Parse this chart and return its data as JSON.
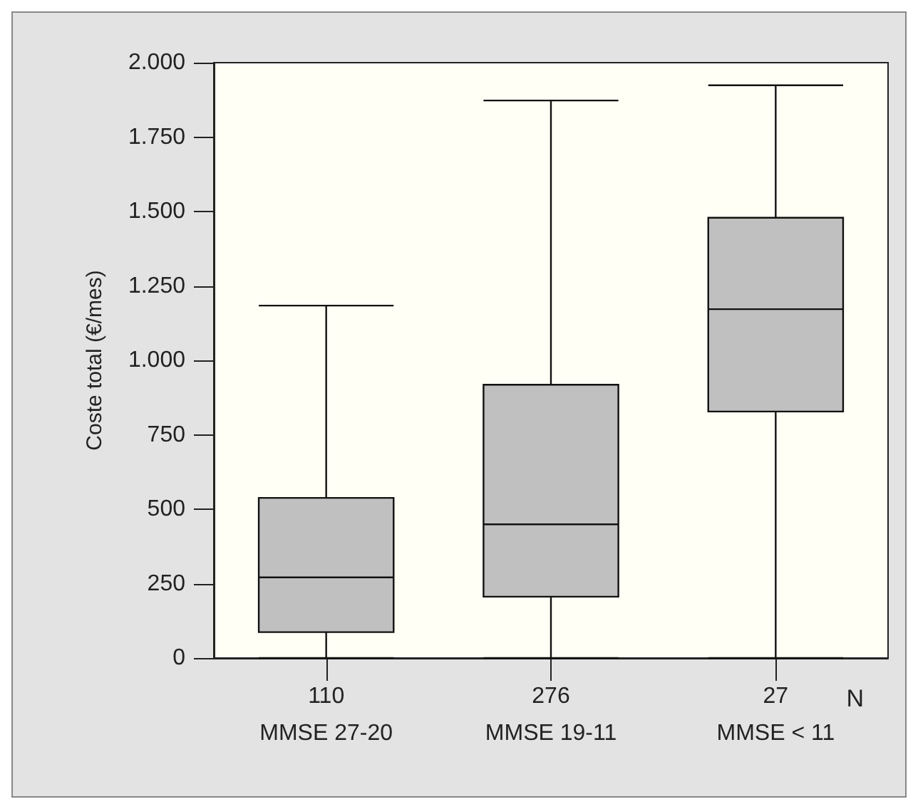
{
  "chart_data": {
    "type": "box",
    "categories": [
      "110\nMMSE 27-20",
      "276\nMMSE 19-11",
      "27\nMMSE < 11"
    ],
    "boxes": [
      {
        "low": 0,
        "q1": 87,
        "median": 271,
        "q3": 538,
        "high": 1184
      },
      {
        "low": 0,
        "q1": 206,
        "median": 449,
        "q3": 918,
        "high": 1873
      },
      {
        "low": 0,
        "q1": 828,
        "median": 1172,
        "q3": 1479,
        "high": 1924
      }
    ],
    "color": "#c0c0c0",
    "ylabel": "Coste total (€/mes)",
    "ylim": [
      0,
      2000
    ],
    "yticks": [
      {
        "value": 0,
        "label": "0"
      },
      {
        "value": 250,
        "label": "250"
      },
      {
        "value": 500,
        "label": "500"
      },
      {
        "value": 750,
        "label": "750"
      },
      {
        "value": 1000,
        "label": "1.000"
      },
      {
        "value": 1250,
        "label": "1.250"
      },
      {
        "value": 1500,
        "label": "1.500"
      },
      {
        "value": 1750,
        "label": "1.750"
      },
      {
        "value": 2000,
        "label": "2.000"
      }
    ],
    "annotations": [
      "N"
    ],
    "grid": false
  }
}
